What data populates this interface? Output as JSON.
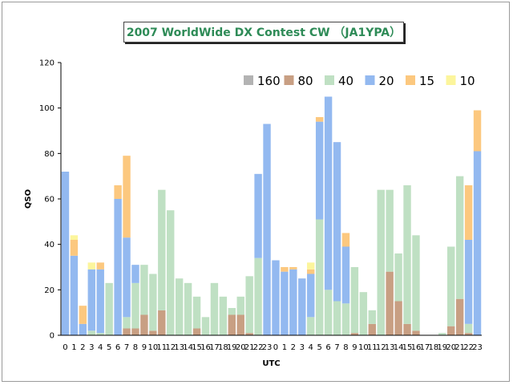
{
  "title": "2007 WorldWide DX Contest CW （JA1YPA）",
  "chart_data": {
    "type": "bar",
    "stacked": true,
    "xlabel": "UTC",
    "ylabel": "QSO",
    "ylim": [
      0,
      120
    ],
    "yticks": [
      0,
      20,
      40,
      60,
      80,
      100,
      120
    ],
    "grid": false,
    "legend_placement": "top-right",
    "categories": [
      "0",
      "1",
      "2",
      "3",
      "4",
      "5",
      "6",
      "7",
      "8",
      "9",
      "10",
      "11",
      "12",
      "13",
      "14",
      "15",
      "16",
      "17",
      "18",
      "19",
      "20",
      "21",
      "22",
      "23",
      "0",
      "1",
      "2",
      "3",
      "4",
      "5",
      "6",
      "7",
      "8",
      "9",
      "10",
      "11",
      "12",
      "13",
      "14",
      "15",
      "16",
      "17",
      "18",
      "19",
      "20",
      "21",
      "22",
      "23"
    ],
    "series": [
      {
        "name": "160",
        "color": "#b3b3b3",
        "values": [
          0,
          0,
          0,
          0,
          0,
          0,
          0,
          0,
          0,
          0,
          0,
          0,
          0,
          0,
          0,
          0,
          0,
          0,
          0,
          0,
          0,
          0,
          0,
          0,
          0,
          0,
          0,
          0,
          0,
          0,
          0,
          0,
          0,
          0,
          0,
          0,
          0,
          0,
          0,
          0,
          0,
          0,
          0,
          0,
          0,
          0,
          0,
          0
        ]
      },
      {
        "name": "80",
        "color": "#c89f83",
        "values": [
          0,
          0,
          0,
          0,
          0,
          0,
          0,
          3,
          3,
          9,
          2,
          11,
          0,
          0,
          0,
          3,
          0,
          0,
          0,
          9,
          9,
          1,
          0,
          0,
          0,
          0,
          0,
          0,
          0,
          0,
          0,
          0,
          0,
          1,
          0,
          5,
          0,
          28,
          15,
          5,
          2,
          0,
          0,
          0,
          4,
          16,
          1,
          0
        ]
      },
      {
        "name": "40",
        "color": "#bfe0c3",
        "values": [
          0,
          0,
          0,
          2,
          1,
          23,
          0,
          5,
          20,
          22,
          25,
          53,
          55,
          25,
          23,
          14,
          8,
          23,
          17,
          3,
          8,
          25,
          34,
          0,
          0,
          0,
          0,
          0,
          8,
          51,
          20,
          15,
          14,
          29,
          19,
          6,
          64,
          36,
          21,
          61,
          42,
          0,
          0,
          1,
          35,
          54,
          4,
          0
        ]
      },
      {
        "name": "20",
        "color": "#93b9f0",
        "values": [
          72,
          35,
          5,
          27,
          28,
          0,
          60,
          35,
          8,
          0,
          0,
          0,
          0,
          0,
          0,
          0,
          0,
          0,
          0,
          0,
          0,
          0,
          37,
          93,
          33,
          28,
          29,
          25,
          19,
          43,
          85,
          70,
          25,
          0,
          0,
          0,
          0,
          0,
          0,
          0,
          0,
          0,
          0,
          0,
          0,
          0,
          37,
          81
        ]
      },
      {
        "name": "15",
        "color": "#fcc87f",
        "values": [
          0,
          7,
          8,
          0,
          3,
          0,
          6,
          36,
          0,
          0,
          0,
          0,
          0,
          0,
          0,
          0,
          0,
          0,
          0,
          0,
          0,
          0,
          0,
          0,
          0,
          2,
          1,
          0,
          2,
          2,
          0,
          0,
          6,
          0,
          0,
          0,
          0,
          0,
          0,
          0,
          0,
          0,
          0,
          0,
          0,
          0,
          24,
          18
        ]
      },
      {
        "name": "10",
        "color": "#fcf59c",
        "values": [
          0,
          2,
          0,
          3,
          0,
          0,
          0,
          0,
          0,
          0,
          0,
          0,
          0,
          0,
          0,
          0,
          0,
          0,
          0,
          0,
          0,
          0,
          0,
          0,
          0,
          0,
          0,
          0,
          3,
          0,
          0,
          0,
          0,
          0,
          0,
          0,
          0,
          0,
          0,
          0,
          0,
          0,
          0,
          0,
          0,
          0,
          0,
          0
        ]
      }
    ]
  }
}
